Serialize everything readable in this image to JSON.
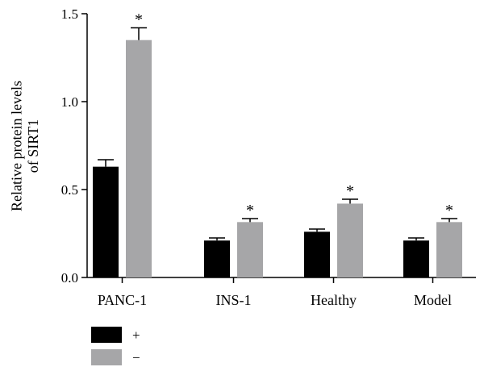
{
  "chart_data": {
    "type": "bar",
    "ylabel_lines": [
      "Relative protein levels",
      "of SIRT1"
    ],
    "ylim": [
      0,
      1.5
    ],
    "yticks": [
      0.0,
      0.5,
      1.0,
      1.5
    ],
    "ytick_labels": [
      "0.0",
      "0.5",
      "1.0",
      "1.5"
    ],
    "categories": [
      "PANC-1",
      "INS-1",
      "Healthy",
      "Model"
    ],
    "series": [
      {
        "name": "+",
        "color": "#000000",
        "values": [
          0.63,
          0.21,
          0.26,
          0.21
        ],
        "errors": [
          0.04,
          0.015,
          0.015,
          0.015
        ]
      },
      {
        "name": "−",
        "color": "#a6a6a8",
        "values": [
          1.35,
          0.315,
          0.42,
          0.315
        ],
        "errors": [
          0.07,
          0.02,
          0.025,
          0.02
        ]
      }
    ],
    "annotations": [
      {
        "category": "PANC-1",
        "series": "−",
        "text": "*"
      },
      {
        "category": "INS-1",
        "series": "−",
        "text": "*"
      },
      {
        "category": "Healthy",
        "series": "−",
        "text": "*"
      },
      {
        "category": "Model",
        "series": "−",
        "text": "*"
      }
    ],
    "grid": false,
    "legend": "bottom-left"
  }
}
